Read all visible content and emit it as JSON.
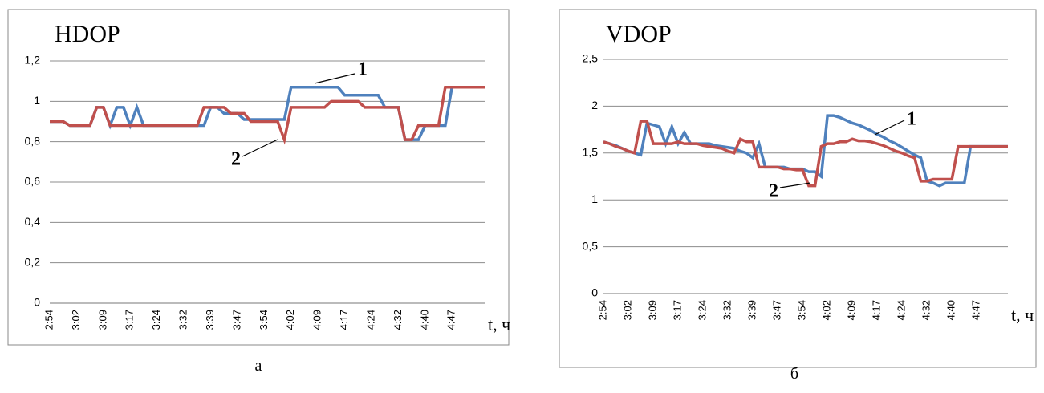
{
  "chart_data": [
    {
      "type": "line",
      "title": "HDOP",
      "xlabel": "t, ч",
      "caption": "а",
      "categories": [
        "2:54",
        null,
        null,
        null,
        "3:02",
        null,
        null,
        null,
        "3:09",
        null,
        null,
        null,
        "3:17",
        null,
        null,
        null,
        "3:24",
        null,
        null,
        null,
        "3:32",
        null,
        null,
        null,
        "3:39",
        null,
        null,
        null,
        "3:47",
        null,
        null,
        null,
        "3:54",
        null,
        null,
        null,
        "4:02",
        null,
        null,
        null,
        "4:09",
        null,
        null,
        null,
        "4:17",
        null,
        null,
        null,
        "4:24",
        null,
        null,
        null,
        "4:32",
        null,
        null,
        null,
        "4:40",
        null,
        null,
        null,
        "4:47",
        null,
        null,
        null,
        null,
        null
      ],
      "series": [
        {
          "name": "1",
          "color": "#4f81bd",
          "values": [
            0.9,
            0.9,
            0.9,
            0.88,
            0.88,
            0.88,
            0.88,
            0.97,
            0.97,
            0.88,
            0.97,
            0.97,
            0.88,
            0.97,
            0.88,
            0.88,
            0.88,
            0.88,
            0.88,
            0.88,
            0.88,
            0.88,
            0.88,
            0.88,
            0.97,
            0.97,
            0.94,
            0.94,
            0.94,
            0.91,
            0.91,
            0.91,
            0.91,
            0.91,
            0.91,
            0.91,
            1.07,
            1.07,
            1.07,
            1.07,
            1.07,
            1.07,
            1.07,
            1.07,
            1.03,
            1.03,
            1.03,
            1.03,
            1.03,
            1.03,
            0.97,
            0.97,
            0.97,
            0.81,
            0.81,
            0.81,
            0.88,
            0.88,
            0.88,
            0.88,
            1.07,
            1.07,
            1.07,
            1.07,
            1.07,
            1.07
          ]
        },
        {
          "name": "2",
          "color": "#c0504d",
          "values": [
            0.9,
            0.9,
            0.9,
            0.88,
            0.88,
            0.88,
            0.88,
            0.97,
            0.97,
            0.88,
            0.88,
            0.88,
            0.88,
            0.88,
            0.88,
            0.88,
            0.88,
            0.88,
            0.88,
            0.88,
            0.88,
            0.88,
            0.88,
            0.97,
            0.97,
            0.97,
            0.97,
            0.94,
            0.94,
            0.94,
            0.9,
            0.9,
            0.9,
            0.9,
            0.9,
            0.81,
            0.97,
            0.97,
            0.97,
            0.97,
            0.97,
            0.97,
            1.0,
            1.0,
            1.0,
            1.0,
            1.0,
            0.97,
            0.97,
            0.97,
            0.97,
            0.97,
            0.97,
            0.81,
            0.81,
            0.88,
            0.88,
            0.88,
            0.88,
            1.07,
            1.07,
            1.07,
            1.07,
            1.07,
            1.07,
            1.07
          ]
        }
      ],
      "ylim": [
        0,
        1.2
      ],
      "yticks": [
        0,
        {
          "value": 0.2,
          "label": "0,2"
        },
        {
          "value": 0.4,
          "label": "0,4"
        },
        {
          "value": 0.6,
          "label": "0,6"
        },
        {
          "value": 0.8,
          "label": "0,8"
        },
        1,
        {
          "value": 1.2,
          "label": "1,2"
        }
      ],
      "grid": true
    },
    {
      "type": "line",
      "title": "VDOP",
      "xlabel": "t, ч",
      "caption": "б",
      "categories": [
        "2:54",
        null,
        null,
        null,
        "3:02",
        null,
        null,
        null,
        "3:09",
        null,
        null,
        null,
        "3:17",
        null,
        null,
        null,
        "3:24",
        null,
        null,
        null,
        "3:32",
        null,
        null,
        null,
        "3:39",
        null,
        null,
        null,
        "3:47",
        null,
        null,
        null,
        "3:54",
        null,
        null,
        null,
        "4:02",
        null,
        null,
        null,
        "4:09",
        null,
        null,
        null,
        "4:17",
        null,
        null,
        null,
        "4:24",
        null,
        null,
        null,
        "4:32",
        null,
        null,
        null,
        "4:40",
        null,
        null,
        null,
        "4:47",
        null,
        null,
        null,
        null,
        null
      ],
      "series": [
        {
          "name": "1",
          "color": "#4f81bd",
          "values": [
            1.62,
            1.6,
            1.58,
            1.55,
            1.52,
            1.5,
            1.48,
            1.82,
            1.8,
            1.78,
            1.6,
            1.78,
            1.6,
            1.72,
            1.6,
            1.6,
            1.6,
            1.6,
            1.58,
            1.57,
            1.56,
            1.55,
            1.52,
            1.5,
            1.45,
            1.6,
            1.35,
            1.35,
            1.35,
            1.35,
            1.33,
            1.33,
            1.33,
            1.3,
            1.3,
            1.25,
            1.9,
            1.9,
            1.88,
            1.85,
            1.82,
            1.8,
            1.77,
            1.74,
            1.7,
            1.67,
            1.63,
            1.6,
            1.56,
            1.52,
            1.48,
            1.45,
            1.2,
            1.18,
            1.15,
            1.18,
            1.18,
            1.18,
            1.18,
            1.57,
            1.57,
            1.57,
            1.57,
            1.57,
            1.57,
            1.57
          ]
        },
        {
          "name": "2",
          "color": "#c0504d",
          "values": [
            1.62,
            1.6,
            1.57,
            1.55,
            1.52,
            1.5,
            1.84,
            1.84,
            1.6,
            1.6,
            1.6,
            1.6,
            1.62,
            1.6,
            1.6,
            1.6,
            1.58,
            1.57,
            1.56,
            1.55,
            1.52,
            1.5,
            1.65,
            1.62,
            1.62,
            1.35,
            1.35,
            1.35,
            1.35,
            1.33,
            1.33,
            1.32,
            1.32,
            1.15,
            1.15,
            1.57,
            1.6,
            1.6,
            1.62,
            1.62,
            1.65,
            1.63,
            1.63,
            1.62,
            1.6,
            1.58,
            1.55,
            1.52,
            1.5,
            1.47,
            1.45,
            1.2,
            1.2,
            1.22,
            1.22,
            1.22,
            1.22,
            1.57,
            1.57,
            1.57,
            1.57,
            1.57,
            1.57,
            1.57,
            1.57,
            1.57
          ]
        }
      ],
      "ylim": [
        0,
        2.5
      ],
      "yticks": [
        0,
        {
          "value": 0.5,
          "label": "0,5"
        },
        1,
        {
          "value": 1.5,
          "label": "1,5"
        },
        2,
        {
          "value": 2.5,
          "label": "2,5"
        }
      ],
      "grid": true
    }
  ]
}
